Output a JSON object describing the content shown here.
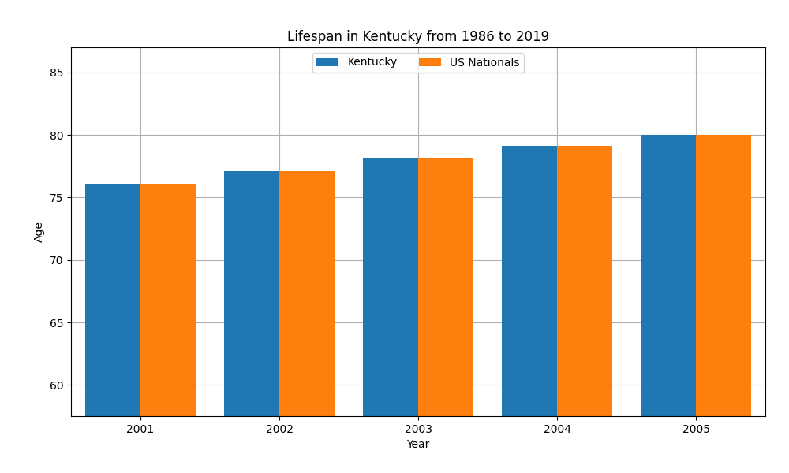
{
  "chart_data": {
    "type": "bar",
    "title": "Lifespan in Kentucky from 1986 to 2019",
    "xlabel": "Year",
    "ylabel": "Age",
    "categories": [
      "2001",
      "2002",
      "2003",
      "2004",
      "2005"
    ],
    "series": [
      {
        "name": "Kentucky",
        "values": [
          76.1,
          77.1,
          78.1,
          79.1,
          80.0
        ]
      },
      {
        "name": "US Nationals",
        "values": [
          76.1,
          77.1,
          78.1,
          79.1,
          80.0
        ]
      }
    ],
    "ylim": [
      57.5,
      87
    ],
    "yticks": [
      60,
      65,
      70,
      75,
      80,
      85
    ],
    "grid": true,
    "legend": "upper center"
  }
}
